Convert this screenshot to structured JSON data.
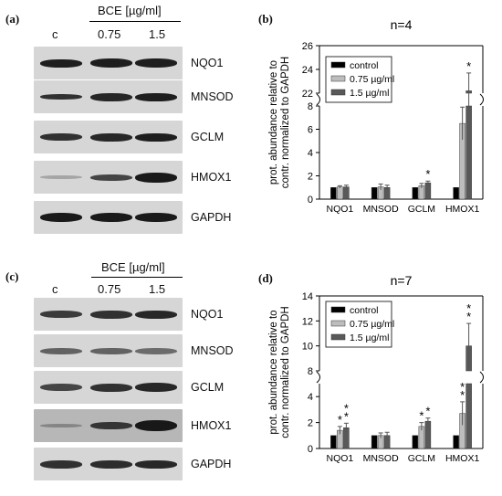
{
  "panels": {
    "a": {
      "label": "(a)",
      "treatment_header": "BCE [µg/ml]",
      "lane_labels": [
        "c",
        "0.75",
        "1.5"
      ],
      "proteins": [
        "NQO1",
        "MNSOD",
        "GCLM",
        "HMOX1",
        "GAPDH"
      ]
    },
    "b": {
      "label": "(b)",
      "title": "n=4"
    },
    "c": {
      "label": "(c)",
      "treatment_header": "BCE [µg/ml]",
      "lane_labels": [
        "c",
        "0.75",
        "1.5"
      ],
      "proteins": [
        "NQO1",
        "MNSOD",
        "GCLM",
        "HMOX1",
        "GAPDH"
      ]
    },
    "d": {
      "label": "(d)",
      "title": "n=7"
    }
  },
  "colors": {
    "control": "#000000",
    "low_dose": "#bdbdbd",
    "high_dose": "#595959",
    "blot_bg": "#d6d6d6"
  },
  "chart_data": [
    {
      "type": "bar",
      "title": "n=4",
      "ylabel": "prot. abundance relative to contr. normalized to GAPDH",
      "categories": [
        "NQO1",
        "MNSOD",
        "GCLM",
        "HMOX1"
      ],
      "series": [
        {
          "name": "control",
          "values": [
            1,
            1,
            1,
            1
          ],
          "errors": [
            0,
            0,
            0,
            0
          ]
        },
        {
          "name": "0.75 µg/ml",
          "values": [
            1.05,
            1.05,
            1.15,
            6.5
          ],
          "errors": [
            0.1,
            0.25,
            0.2,
            1.4
          ]
        },
        {
          "name": "1.5 µg/ml",
          "values": [
            1.05,
            1.0,
            1.4,
            22.2
          ],
          "errors": [
            0.15,
            0.2,
            0.15,
            1.5
          ]
        }
      ],
      "significance": [
        {
          "category": "GCLM",
          "series": "1.5 µg/ml",
          "marks": [
            "*"
          ]
        },
        {
          "category": "HMOX1",
          "series": "1.5 µg/ml",
          "marks": [
            "*"
          ]
        }
      ],
      "broken_axis": {
        "lower": [
          0,
          8
        ],
        "upper": [
          22,
          26
        ]
      },
      "yticks": [
        0,
        2,
        4,
        6,
        8,
        22,
        24,
        26
      ],
      "legend": "top-left"
    },
    {
      "type": "bar",
      "title": "n=7",
      "ylabel": "prot. abundance relative to contr. normalized to GAPDH",
      "categories": [
        "NQO1",
        "MNSOD",
        "GCLM",
        "HMOX1"
      ],
      "series": [
        {
          "name": "control",
          "values": [
            1,
            1,
            1,
            1
          ],
          "errors": [
            0,
            0,
            0,
            0
          ]
        },
        {
          "name": "0.75 µg/ml",
          "values": [
            1.4,
            1.0,
            1.7,
            2.7
          ],
          "errors": [
            0.3,
            0.2,
            0.3,
            0.9
          ]
        },
        {
          "name": "1.5 µg/ml",
          "values": [
            1.6,
            1.0,
            2.1,
            10.0
          ],
          "errors": [
            0.35,
            0.25,
            0.25,
            1.8
          ]
        }
      ],
      "significance": [
        {
          "category": "NQO1",
          "series": "0.75 µg/ml",
          "marks": [
            "*"
          ]
        },
        {
          "category": "NQO1",
          "series": "1.5 µg/ml",
          "marks": [
            "*",
            "*"
          ]
        },
        {
          "category": "GCLM",
          "series": "0.75 µg/ml",
          "marks": [
            "*"
          ]
        },
        {
          "category": "GCLM",
          "series": "1.5 µg/ml",
          "marks": [
            "*"
          ]
        },
        {
          "category": "HMOX1",
          "series": "0.75 µg/ml",
          "marks": [
            "*",
            "*"
          ]
        },
        {
          "category": "HMOX1",
          "series": "1.5 µg/ml",
          "marks": [
            "*",
            "*"
          ]
        }
      ],
      "broken_axis": {
        "lower": [
          0,
          5
        ],
        "upper": [
          8,
          14
        ]
      },
      "yticks": [
        0,
        2,
        4,
        8,
        10,
        12,
        14
      ],
      "legend": "top-left"
    }
  ]
}
